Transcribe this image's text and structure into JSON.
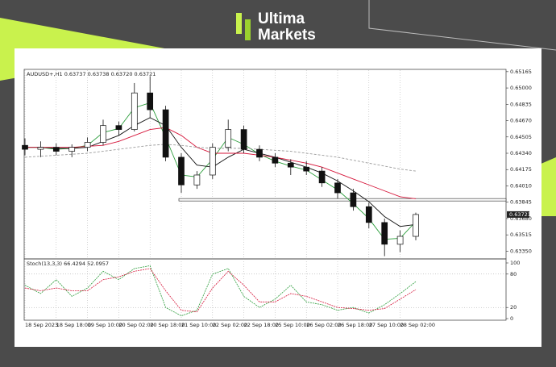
{
  "logo": {
    "line1": "Ultima",
    "line2": "Markets"
  },
  "chart_data": [
    {
      "type": "candlestick",
      "header": "AUDUSD+,H1  0.63737 0.63738 0.63720 0.63721",
      "x": [
        "18 Sep 2023",
        null,
        "18 Sep 18:00",
        null,
        "19 Sep 10:00",
        null,
        "20 Sep 02:00",
        null,
        "20 Sep 18:00",
        null,
        "21 Sep 10:00",
        null,
        "22 Sep 02:00",
        null,
        "22 Sep 18:00",
        null,
        "25 Sep 10:00",
        null,
        "26 Sep 02:00",
        null,
        "26 Sep 18:00",
        null,
        "27 Sep 10:00",
        null,
        "28 Sep 02:00",
        null
      ],
      "open": [
        0.6442,
        0.6438,
        0.644,
        0.6436,
        0.644,
        0.6445,
        0.6462,
        0.6458,
        0.6495,
        0.6478,
        0.643,
        0.6402,
        0.6412,
        0.644,
        0.6458,
        0.6438,
        0.643,
        0.6424,
        0.642,
        0.6416,
        0.6404,
        0.6394,
        0.638,
        0.6364,
        0.6342,
        0.635
      ],
      "high": [
        0.6449,
        0.6446,
        0.6444,
        0.6443,
        0.645,
        0.6468,
        0.6466,
        0.6505,
        0.6512,
        0.6482,
        0.6434,
        0.6416,
        0.6444,
        0.6468,
        0.6462,
        0.6442,
        0.6434,
        0.6428,
        0.6426,
        0.642,
        0.6408,
        0.6398,
        0.6384,
        0.6368,
        0.6356,
        0.6374
      ],
      "low": [
        0.6432,
        0.643,
        0.6432,
        0.643,
        0.6436,
        0.6442,
        0.6452,
        0.6456,
        0.647,
        0.6426,
        0.6394,
        0.6398,
        0.6408,
        0.6436,
        0.6434,
        0.6426,
        0.642,
        0.6412,
        0.6412,
        0.64,
        0.6388,
        0.6376,
        0.6358,
        0.633,
        0.6334,
        0.6346
      ],
      "close": [
        0.6438,
        0.644,
        0.6436,
        0.644,
        0.6445,
        0.6462,
        0.6458,
        0.6495,
        0.6478,
        0.643,
        0.6402,
        0.6412,
        0.644,
        0.6458,
        0.6438,
        0.643,
        0.6424,
        0.642,
        0.6416,
        0.6404,
        0.6394,
        0.638,
        0.6364,
        0.6342,
        0.635,
        0.63721
      ],
      "up_color": "#ffffff",
      "down_color": "#111111",
      "series": [
        {
          "color": "#2a9d3a",
          "dash": false,
          "values": [
            0.644,
            0.644,
            0.6438,
            0.6439,
            0.6442,
            0.6455,
            0.6459,
            0.648,
            0.6485,
            0.645,
            0.6412,
            0.641,
            0.6428,
            0.645,
            0.6443,
            0.6433,
            0.6426,
            0.6421,
            0.6417,
            0.6407,
            0.6397,
            0.6383,
            0.6368,
            0.6347,
            0.6348,
            0.6365
          ]
        },
        {
          "color": "#111111",
          "dash": false,
          "values": [
            0.644,
            0.644,
            0.6439,
            0.6439,
            0.644,
            0.6446,
            0.6452,
            0.6462,
            0.647,
            0.6462,
            0.644,
            0.6422,
            0.642,
            0.643,
            0.6438,
            0.6434,
            0.643,
            0.6425,
            0.642,
            0.6414,
            0.6406,
            0.6396,
            0.6385,
            0.637,
            0.636,
            0.6362
          ]
        },
        {
          "color": "#d6163a",
          "dash": false,
          "values": [
            0.644,
            0.644,
            0.644,
            0.644,
            0.6441,
            0.6442,
            0.6446,
            0.6452,
            0.6458,
            0.646,
            0.6452,
            0.644,
            0.6434,
            0.6434,
            0.6434,
            0.6432,
            0.643,
            0.6427,
            0.6424,
            0.642,
            0.6414,
            0.6408,
            0.6402,
            0.6396,
            0.639,
            0.6388
          ]
        },
        {
          "color": "#9a9a9a",
          "dash": true,
          "values": [
            0.643,
            0.6431,
            0.6432,
            0.6433,
            0.6434,
            0.6436,
            0.6438,
            0.644,
            0.6442,
            0.6443,
            0.6442,
            0.644,
            0.6439,
            0.6439,
            0.6439,
            0.6438,
            0.6437,
            0.6436,
            0.6434,
            0.6432,
            0.643,
            0.6427,
            0.6424,
            0.6421,
            0.6418,
            0.6416
          ]
        }
      ],
      "support_level": 0.6387,
      "current_price": 0.63721,
      "ylim": [
        0.6328,
        0.6518
      ],
      "yticks": [
        0.65165,
        {
          "value": 0.65,
          "label": "0.65000"
        },
        0.64835,
        {
          "value": 0.6467,
          "label": "0.64670"
        },
        0.64505,
        {
          "value": 0.6434,
          "label": "0.64340"
        },
        0.64175,
        {
          "value": 0.6401,
          "label": "0.64010"
        },
        0.63845,
        {
          "value": 0.6368,
          "label": "0.63680"
        },
        0.63515,
        {
          "value": 0.6335,
          "label": "0.63350"
        }
      ],
      "xgrid": true
    },
    {
      "type": "line",
      "title": "Stoch(13,3,3) 66.4294 52.0957",
      "series": [
        {
          "color": "#2a9d3a",
          "values": [
            60,
            45,
            70,
            40,
            55,
            85,
            70,
            90,
            95,
            20,
            5,
            15,
            80,
            90,
            40,
            20,
            35,
            60,
            30,
            25,
            15,
            20,
            10,
            25,
            45,
            66.4294
          ]
        },
        {
          "color": "#d6163a",
          "values": [
            55,
            50,
            55,
            50,
            50,
            70,
            75,
            85,
            90,
            50,
            15,
            12,
            55,
            85,
            60,
            30,
            30,
            45,
            40,
            30,
            20,
            18,
            15,
            18,
            35,
            52.0957
          ]
        }
      ],
      "levels": [
        80,
        20
      ],
      "ylim": [
        0,
        100
      ],
      "yticks": [
        100,
        80,
        20,
        0
      ]
    }
  ]
}
